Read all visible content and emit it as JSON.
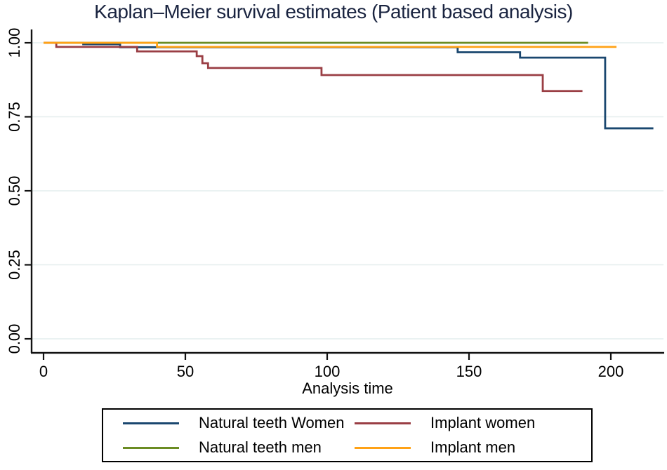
{
  "chart_data": {
    "type": "line",
    "subtype": "kaplan-meier-step",
    "title": "Kaplan–Meier survival estimates (Patient based analysis)",
    "xlabel": "Analysis time",
    "ylabel": "",
    "xlim": [
      0,
      218
    ],
    "ylim": [
      0.0,
      1.0
    ],
    "grid": true,
    "gridline_color": "#e4edee",
    "axis_color": "#121212",
    "legend_position": "bottom-box",
    "x_ticks": [
      {
        "value": 0,
        "label": "0"
      },
      {
        "value": 50,
        "label": "50"
      },
      {
        "value": 100,
        "label": "100"
      },
      {
        "value": 150,
        "label": "150"
      },
      {
        "value": 200,
        "label": "200"
      }
    ],
    "y_ticks": [
      {
        "value": 0.0,
        "label": "0.00"
      },
      {
        "value": 0.25,
        "label": "0.25"
      },
      {
        "value": 0.5,
        "label": "0.50"
      },
      {
        "value": 0.75,
        "label": "0.75"
      },
      {
        "value": 1.0,
        "label": "1.00"
      }
    ],
    "series": [
      {
        "name": "Natural teeth Women",
        "color": "#1a476f",
        "step": true,
        "x": [
          0,
          14,
          27,
          146,
          168,
          198,
          215
        ],
        "y": [
          1.0,
          0.995,
          0.985,
          0.968,
          0.95,
          0.711,
          0.711
        ]
      },
      {
        "name": "Natural teeth men",
        "color": "#6b8c23",
        "step": true,
        "x": [
          0,
          192
        ],
        "y": [
          1.0,
          1.0
        ]
      },
      {
        "name": "Implant women",
        "color": "#9a3e44",
        "step": true,
        "x": [
          0,
          4.5,
          33,
          54,
          56,
          58,
          98,
          176,
          190
        ],
        "y": [
          1.0,
          0.986,
          0.971,
          0.955,
          0.931,
          0.915,
          0.891,
          0.837,
          0.837
        ]
      },
      {
        "name": "Implant men",
        "color": "#ffa216",
        "step": true,
        "x": [
          0,
          40,
          202
        ],
        "y": [
          1.0,
          0.986,
          0.986
        ]
      }
    ]
  },
  "legend": {
    "entries": [
      {
        "label": "Natural teeth Women",
        "color": "#1a476f"
      },
      {
        "label": "Implant women",
        "color": "#9a3e44"
      },
      {
        "label": "Natural teeth men",
        "color": "#6b8c23"
      },
      {
        "label": "Implant men",
        "color": "#ffa216"
      }
    ]
  }
}
